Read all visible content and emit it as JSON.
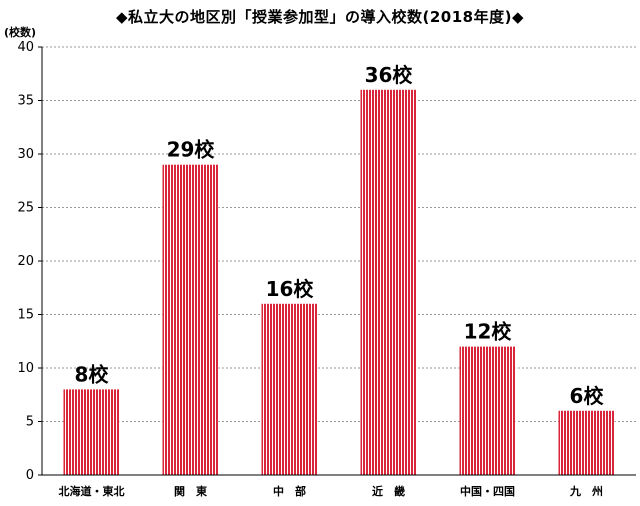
{
  "chart_data": {
    "type": "bar",
    "title": "◆私立大の地区別「授業参加型」の導入校数(2018年度)◆",
    "ylabel": "(校数)",
    "xlabel": "",
    "categories": [
      "北海道・東北",
      "関　東",
      "中　部",
      "近　畿",
      "中国・四国",
      "九　州"
    ],
    "values": [
      8,
      29,
      16,
      36,
      12,
      6
    ],
    "data_labels": [
      "8校",
      "29校",
      "16校",
      "36校",
      "12校",
      "6校"
    ],
    "ylim": [
      0,
      40
    ],
    "yticks": [
      0,
      5,
      10,
      15,
      20,
      25,
      30,
      35,
      40
    ],
    "grid": true,
    "legend": "none",
    "colors": {
      "bar": "#d9263b",
      "grid": "#999999",
      "axis": "#000000"
    }
  }
}
